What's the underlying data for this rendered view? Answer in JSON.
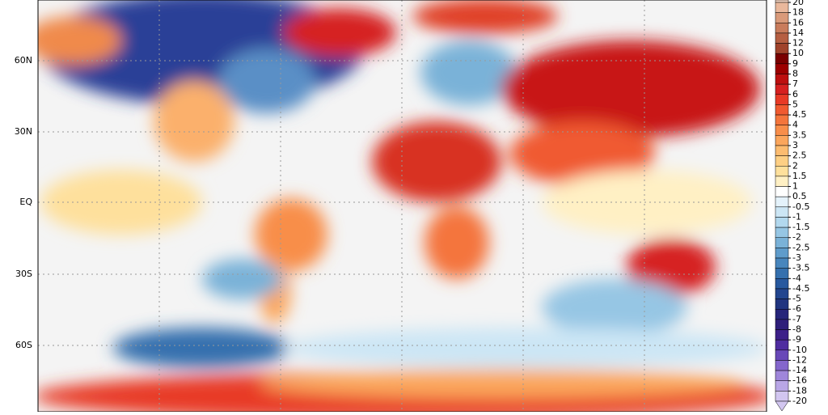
{
  "map": {
    "lat_labels": [
      "60N",
      "30N",
      "EQ",
      "30S",
      "60S"
    ],
    "colorbar": {
      "labels": [
        "20",
        "18",
        "16",
        "14",
        "12",
        "10",
        "9",
        "8",
        "7",
        "6",
        "5",
        "4.5",
        "4",
        "3.5",
        "3",
        "2.5",
        "2",
        "1.5",
        "1",
        "0.5",
        "-0.5",
        "-1",
        "-1.5",
        "-2",
        "-2.5",
        "-3",
        "-3.5",
        "-4",
        "-4.5",
        "-5",
        "-6",
        "-7",
        "-8",
        "-9",
        "-10",
        "-12",
        "-14",
        "-16",
        "-18",
        "-20"
      ],
      "colors": [
        "#f6d6c4",
        "#e9b89c",
        "#d99a7a",
        "#c97c5c",
        "#b65f42",
        "#a0432b",
        "#7a0000",
        "#9c0000",
        "#bd0f0f",
        "#d62020",
        "#e83a26",
        "#f05a30",
        "#f4753c",
        "#f88e4a",
        "#fba65c",
        "#fcbc70",
        "#fdcf84",
        "#fee09c",
        "#fff0c4",
        "#ffffff",
        "#e4f2fb",
        "#cce6f5",
        "#b2d8ee",
        "#96c6e4",
        "#7ab2d8",
        "#5f9ccb",
        "#4886bd",
        "#3570ae",
        "#28599f",
        "#23468f",
        "#213580",
        "#26257a",
        "#2f1f7a",
        "#3d2089",
        "#4f2da0",
        "#6848b8",
        "#8466cc",
        "#9f86da",
        "#b9a6e6",
        "#d2c6f0"
      ]
    }
  }
}
